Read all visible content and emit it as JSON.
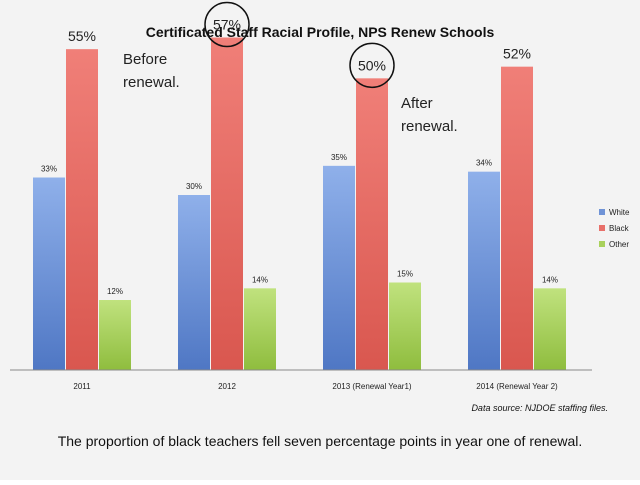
{
  "chart_data": {
    "type": "bar",
    "title": "Certificated Staff Racial Profile, NPS Renew Schools",
    "categories": [
      "2011",
      "2012",
      "2013 (Renewal Year1)",
      "2014 (Renewal Year 2)"
    ],
    "series": [
      {
        "name": "White",
        "values": [
          33,
          30,
          35,
          34
        ],
        "labels": [
          "33%",
          "30%",
          "35%",
          "34%"
        ],
        "color": "#6f93d6"
      },
      {
        "name": "Black",
        "values": [
          55,
          57,
          50,
          52
        ],
        "labels": [
          "55%",
          "57%",
          "50%",
          "52%"
        ],
        "color": "#e8706a"
      },
      {
        "name": "Other",
        "values": [
          12,
          14,
          15,
          14
        ],
        "labels": [
          "12%",
          "14%",
          "15%",
          "14%"
        ],
        "color": "#a9d15c"
      }
    ],
    "ylim": [
      0,
      60
    ],
    "grid": false,
    "legend": "right",
    "annotations": [
      {
        "text_lines": [
          "Before",
          "renewal."
        ]
      },
      {
        "text_lines": [
          "After",
          "renewal."
        ]
      }
    ],
    "circled_labels": [
      "57%",
      "50%"
    ],
    "source": "Data source: NJDOE staffing files.",
    "caption": "The proportion of black teachers fell seven percentage points in year one of renewal."
  }
}
